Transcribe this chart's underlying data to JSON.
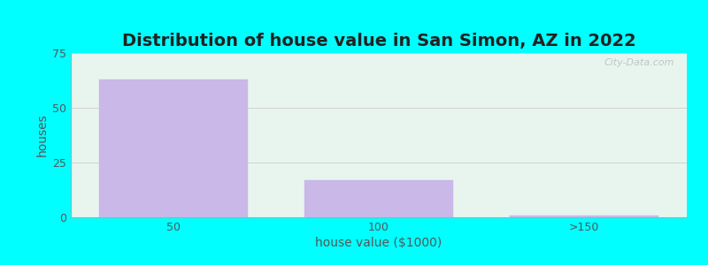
{
  "title": "Distribution of house value in San Simon, AZ in 2022",
  "xlabel": "house value ($1000)",
  "ylabel": "houses",
  "categories": [
    "50",
    "100",
    ">150"
  ],
  "values": [
    63,
    17,
    1
  ],
  "bar_color": "#C9B8E8",
  "bar_edgecolor": "#C9B8E8",
  "ylim": [
    0,
    75
  ],
  "yticks": [
    0,
    25,
    50,
    75
  ],
  "background_outer": "#00FFFF",
  "background_plot": "#E8F5EE",
  "title_fontsize": 14,
  "axis_label_fontsize": 10,
  "tick_fontsize": 9,
  "tick_color": "#555555",
  "title_color": "#222222",
  "label_color": "#555555",
  "watermark_text": "City-Data.com",
  "bar_width": 0.72
}
